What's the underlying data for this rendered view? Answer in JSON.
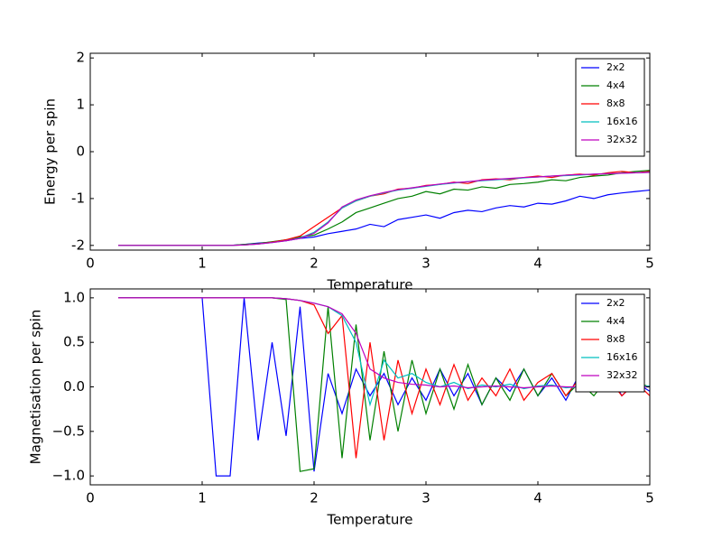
{
  "chart_data": [
    {
      "type": "line",
      "xlabel": "Temperature",
      "ylabel": "Energy per spin",
      "x": [
        0.25,
        0.375,
        0.5,
        0.625,
        0.75,
        0.875,
        1.0,
        1.125,
        1.25,
        1.375,
        1.5,
        1.625,
        1.75,
        1.875,
        2.0,
        2.125,
        2.25,
        2.375,
        2.5,
        2.625,
        2.75,
        2.875,
        3.0,
        3.125,
        3.25,
        3.375,
        3.5,
        3.625,
        3.75,
        3.875,
        4.0,
        4.125,
        4.25,
        4.375,
        4.5,
        4.625,
        4.75,
        4.875,
        5.0
      ],
      "series": [
        {
          "name": "2x2",
          "color": "#0000ff",
          "values": [
            -2,
            -2,
            -2,
            -2,
            -2,
            -2,
            -2,
            -2,
            -2,
            -1.98,
            -1.95,
            -1.93,
            -1.9,
            -1.85,
            -1.82,
            -1.75,
            -1.7,
            -1.65,
            -1.55,
            -1.6,
            -1.45,
            -1.4,
            -1.35,
            -1.42,
            -1.3,
            -1.25,
            -1.28,
            -1.2,
            -1.15,
            -1.18,
            -1.1,
            -1.12,
            -1.05,
            -0.95,
            -1.0,
            -0.92,
            -0.88,
            -0.85,
            -0.82
          ]
        },
        {
          "name": "4x4",
          "color": "#008000",
          "values": [
            -2,
            -2,
            -2,
            -2,
            -2,
            -2,
            -2,
            -2,
            -2,
            -1.98,
            -1.96,
            -1.92,
            -1.88,
            -1.82,
            -1.78,
            -1.65,
            -1.5,
            -1.3,
            -1.2,
            -1.1,
            -1.0,
            -0.95,
            -0.85,
            -0.9,
            -0.8,
            -0.82,
            -0.75,
            -0.78,
            -0.7,
            -0.68,
            -0.65,
            -0.6,
            -0.62,
            -0.55,
            -0.52,
            -0.5,
            -0.45,
            -0.42,
            -0.4
          ]
        },
        {
          "name": "8x8",
          "color": "#ff0000",
          "values": [
            -2,
            -2,
            -2,
            -2,
            -2,
            -2,
            -2,
            -2,
            -2,
            -1.99,
            -1.97,
            -1.93,
            -1.88,
            -1.8,
            -1.6,
            -1.4,
            -1.2,
            -1.05,
            -0.95,
            -0.9,
            -0.8,
            -0.78,
            -0.72,
            -0.7,
            -0.65,
            -0.68,
            -0.6,
            -0.58,
            -0.6,
            -0.55,
            -0.52,
            -0.55,
            -0.5,
            -0.48,
            -0.5,
            -0.45,
            -0.42,
            -0.45,
            -0.42
          ]
        },
        {
          "name": "16x16",
          "color": "#00bfbf",
          "values": [
            -2,
            -2,
            -2,
            -2,
            -2,
            -2,
            -2,
            -2,
            -2,
            -1.99,
            -1.97,
            -1.94,
            -1.9,
            -1.84,
            -1.72,
            -1.5,
            -1.2,
            -1.05,
            -0.95,
            -0.88,
            -0.82,
            -0.78,
            -0.74,
            -0.7,
            -0.67,
            -0.64,
            -0.62,
            -0.6,
            -0.58,
            -0.56,
            -0.54,
            -0.52,
            -0.51,
            -0.5,
            -0.48,
            -0.47,
            -0.46,
            -0.45,
            -0.44
          ]
        },
        {
          "name": "32x32",
          "color": "#bf00bf",
          "values": [
            -2,
            -2,
            -2,
            -2,
            -2,
            -2,
            -2,
            -2,
            -2,
            -1.99,
            -1.97,
            -1.94,
            -1.9,
            -1.85,
            -1.74,
            -1.52,
            -1.18,
            -1.03,
            -0.94,
            -0.87,
            -0.81,
            -0.77,
            -0.73,
            -0.69,
            -0.66,
            -0.64,
            -0.61,
            -0.59,
            -0.57,
            -0.55,
            -0.54,
            -0.52,
            -0.5,
            -0.49,
            -0.48,
            -0.47,
            -0.46,
            -0.45,
            -0.44
          ]
        }
      ],
      "xlim": [
        0,
        5
      ],
      "ylim": [
        -2.1,
        2.1
      ],
      "xticks": [
        0,
        1,
        2,
        3,
        4,
        5
      ],
      "yticks": [
        -2,
        -1,
        0,
        1,
        2
      ],
      "legend": "upper right"
    },
    {
      "type": "line",
      "xlabel": "Temperature",
      "ylabel": "Magnetisation per spin",
      "x": [
        0.25,
        0.375,
        0.5,
        0.625,
        0.75,
        0.875,
        1.0,
        1.125,
        1.25,
        1.375,
        1.5,
        1.625,
        1.75,
        1.875,
        2.0,
        2.125,
        2.25,
        2.375,
        2.5,
        2.625,
        2.75,
        2.875,
        3.0,
        3.125,
        3.25,
        3.375,
        3.5,
        3.625,
        3.75,
        3.875,
        4.0,
        4.125,
        4.25,
        4.375,
        4.5,
        4.625,
        4.75,
        4.875,
        5.0
      ],
      "series": [
        {
          "name": "2x2",
          "color": "#0000ff",
          "values": [
            1,
            1,
            1,
            1,
            1,
            1,
            1,
            -1,
            -1,
            1,
            -0.6,
            0.5,
            -0.55,
            0.9,
            -0.95,
            0.15,
            -0.3,
            0.2,
            -0.1,
            0.15,
            -0.2,
            0.1,
            -0.15,
            0.2,
            -0.1,
            0.15,
            -0.2,
            0.1,
            -0.05,
            0.2,
            -0.1,
            0.1,
            -0.15,
            0.15,
            -0.05,
            0.2,
            -0.1,
            0.05,
            -0.05
          ]
        },
        {
          "name": "4x4",
          "color": "#008000",
          "values": [
            1,
            1,
            1,
            1,
            1,
            1,
            1,
            1,
            1,
            1,
            1,
            1,
            0.98,
            -0.95,
            -0.92,
            0.9,
            -0.8,
            0.7,
            -0.6,
            0.4,
            -0.5,
            0.3,
            -0.3,
            0.2,
            -0.25,
            0.25,
            -0.2,
            0.1,
            -0.15,
            0.2,
            -0.1,
            0.15,
            -0.1,
            0.05,
            -0.1,
            0.1,
            -0.05,
            0.05,
            0.0
          ]
        },
        {
          "name": "8x8",
          "color": "#ff0000",
          "values": [
            1,
            1,
            1,
            1,
            1,
            1,
            1,
            1,
            1,
            1,
            1,
            1,
            0.99,
            0.97,
            0.92,
            0.6,
            0.8,
            -0.8,
            0.5,
            -0.6,
            0.3,
            -0.3,
            0.2,
            -0.2,
            0.25,
            -0.15,
            0.1,
            -0.1,
            0.2,
            -0.15,
            0.05,
            0.15,
            -0.1,
            0.1,
            -0.05,
            0.1,
            -0.1,
            0.05,
            -0.1
          ]
        },
        {
          "name": "16x16",
          "color": "#00bfbf",
          "values": [
            1,
            1,
            1,
            1,
            1,
            1,
            1,
            1,
            1,
            1,
            1,
            1,
            0.99,
            0.97,
            0.94,
            0.9,
            0.8,
            0.5,
            -0.2,
            0.3,
            0.1,
            0.15,
            0.05,
            0.0,
            0.05,
            -0.02,
            0.02,
            0.0,
            0.03,
            -0.02,
            0.01,
            0.02,
            -0.01,
            0.0,
            0.02,
            -0.01,
            0.01,
            0.0,
            0.01
          ]
        },
        {
          "name": "32x32",
          "color": "#bf00bf",
          "values": [
            1,
            1,
            1,
            1,
            1,
            1,
            1,
            1,
            1,
            1,
            1,
            1,
            0.99,
            0.97,
            0.94,
            0.9,
            0.82,
            0.6,
            0.2,
            0.1,
            0.05,
            0.03,
            0.02,
            0.0,
            0.01,
            -0.01,
            0.0,
            0.01,
            0.0,
            -0.01,
            0.0,
            0.01,
            0.0,
            0.0,
            0.01,
            0.0,
            -0.01,
            0.0,
            0.0
          ]
        }
      ],
      "xlim": [
        0,
        5
      ],
      "ylim": [
        -1.1,
        1.1
      ],
      "xticks": [
        0,
        1,
        2,
        3,
        4,
        5
      ],
      "yticks": [
        {
          "value": -1,
          "label": "−1.0"
        },
        {
          "value": -0.5,
          "label": "−0.5"
        },
        {
          "value": 0,
          "label": "0.0"
        },
        {
          "value": 0.5,
          "label": "0.5"
        },
        {
          "value": 1,
          "label": "1.0"
        }
      ],
      "legend": "upper right"
    }
  ]
}
